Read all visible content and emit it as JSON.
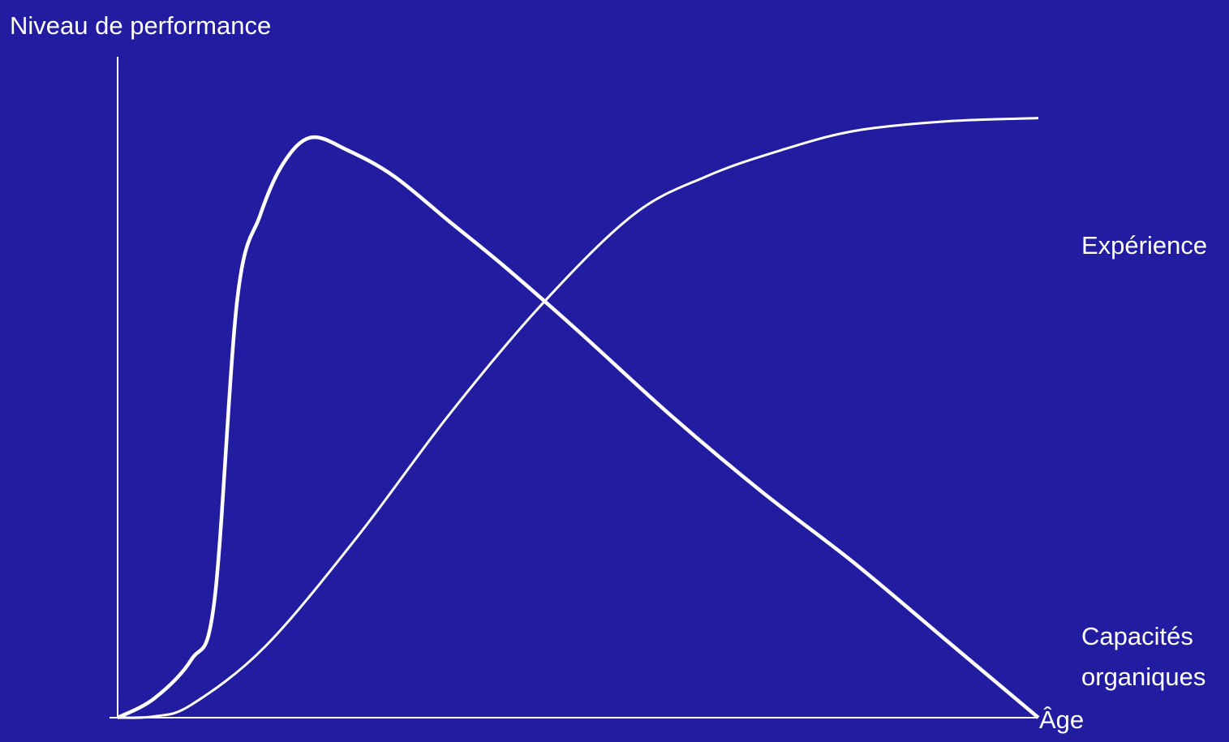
{
  "colors": {
    "background": "#211ca0",
    "foreground": "#ffffff"
  },
  "chart_data": {
    "type": "line",
    "title": "",
    "ylabel": "Niveau de performance",
    "xlabel": "Âge",
    "xlim": [
      0,
      100
    ],
    "ylim": [
      0,
      100
    ],
    "grid": false,
    "legend": "end-of-line labels",
    "series": [
      {
        "name": "Expérience",
        "x": [
          0,
          4,
          8,
          16,
          26,
          36,
          46,
          56,
          64,
          72,
          80,
          90,
          100
        ],
        "y": [
          0,
          0.2,
          2,
          11,
          28,
          47,
          64,
          78,
          84,
          88,
          91,
          92.5,
          93
        ]
      },
      {
        "name": "Capacités organiques",
        "x": [
          0,
          4,
          8,
          10.5,
          13,
          15.5,
          18,
          21,
          25,
          30,
          36,
          42,
          50,
          60,
          70,
          80,
          90,
          100
        ],
        "y": [
          0,
          3,
          9,
          18,
          65,
          78,
          86,
          90,
          88,
          84,
          77,
          70,
          60,
          47,
          35,
          24,
          12,
          0
        ]
      }
    ],
    "series_labels": {
      "experience": "Expérience",
      "capacites_line1": "Capacités",
      "capacites_line2": "organiques"
    }
  }
}
